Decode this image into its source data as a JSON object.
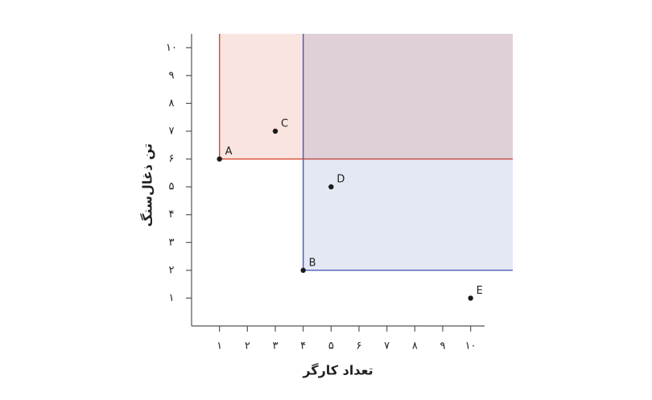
{
  "chart_data": {
    "type": "scatter",
    "x_label": "تعداد کارگر",
    "y_label": "تن ذغال‌سنگ",
    "x": [
      1,
      4,
      3,
      5,
      10
    ],
    "values": [
      6,
      2,
      7,
      5,
      1
    ],
    "labels": [
      "A",
      "B",
      "C",
      "D",
      "E"
    ],
    "color": "#1a1a1a",
    "region_colors": [
      "#d9472b",
      "#4a5bb5"
    ],
    "xlim": [
      0,
      10.5
    ],
    "ylim": [
      0,
      10.5
    ],
    "xticks": [
      {
        "value": 1,
        "label": "۱"
      },
      {
        "value": 2,
        "label": "۲"
      },
      {
        "value": 3,
        "label": "۳"
      },
      {
        "value": 4,
        "label": "۴"
      },
      {
        "value": 5,
        "label": "۵"
      },
      {
        "value": 6,
        "label": "۶"
      },
      {
        "value": 7,
        "label": "۷"
      },
      {
        "value": 8,
        "label": "۸"
      },
      {
        "value": 9,
        "label": "۹"
      },
      {
        "value": 10,
        "label": "۱۰"
      }
    ],
    "yticks": [
      {
        "value": 1,
        "label": "۱"
      },
      {
        "value": 2,
        "label": "۲"
      },
      {
        "value": 3,
        "label": "۳"
      },
      {
        "value": 4,
        "label": "۴"
      },
      {
        "value": 5,
        "label": "۵"
      },
      {
        "value": 6,
        "label": "۶"
      },
      {
        "value": 7,
        "label": "۷"
      },
      {
        "value": 8,
        "label": "۸"
      },
      {
        "value": 9,
        "label": "۹"
      },
      {
        "value": 10,
        "label": "۱۰"
      }
    ]
  }
}
